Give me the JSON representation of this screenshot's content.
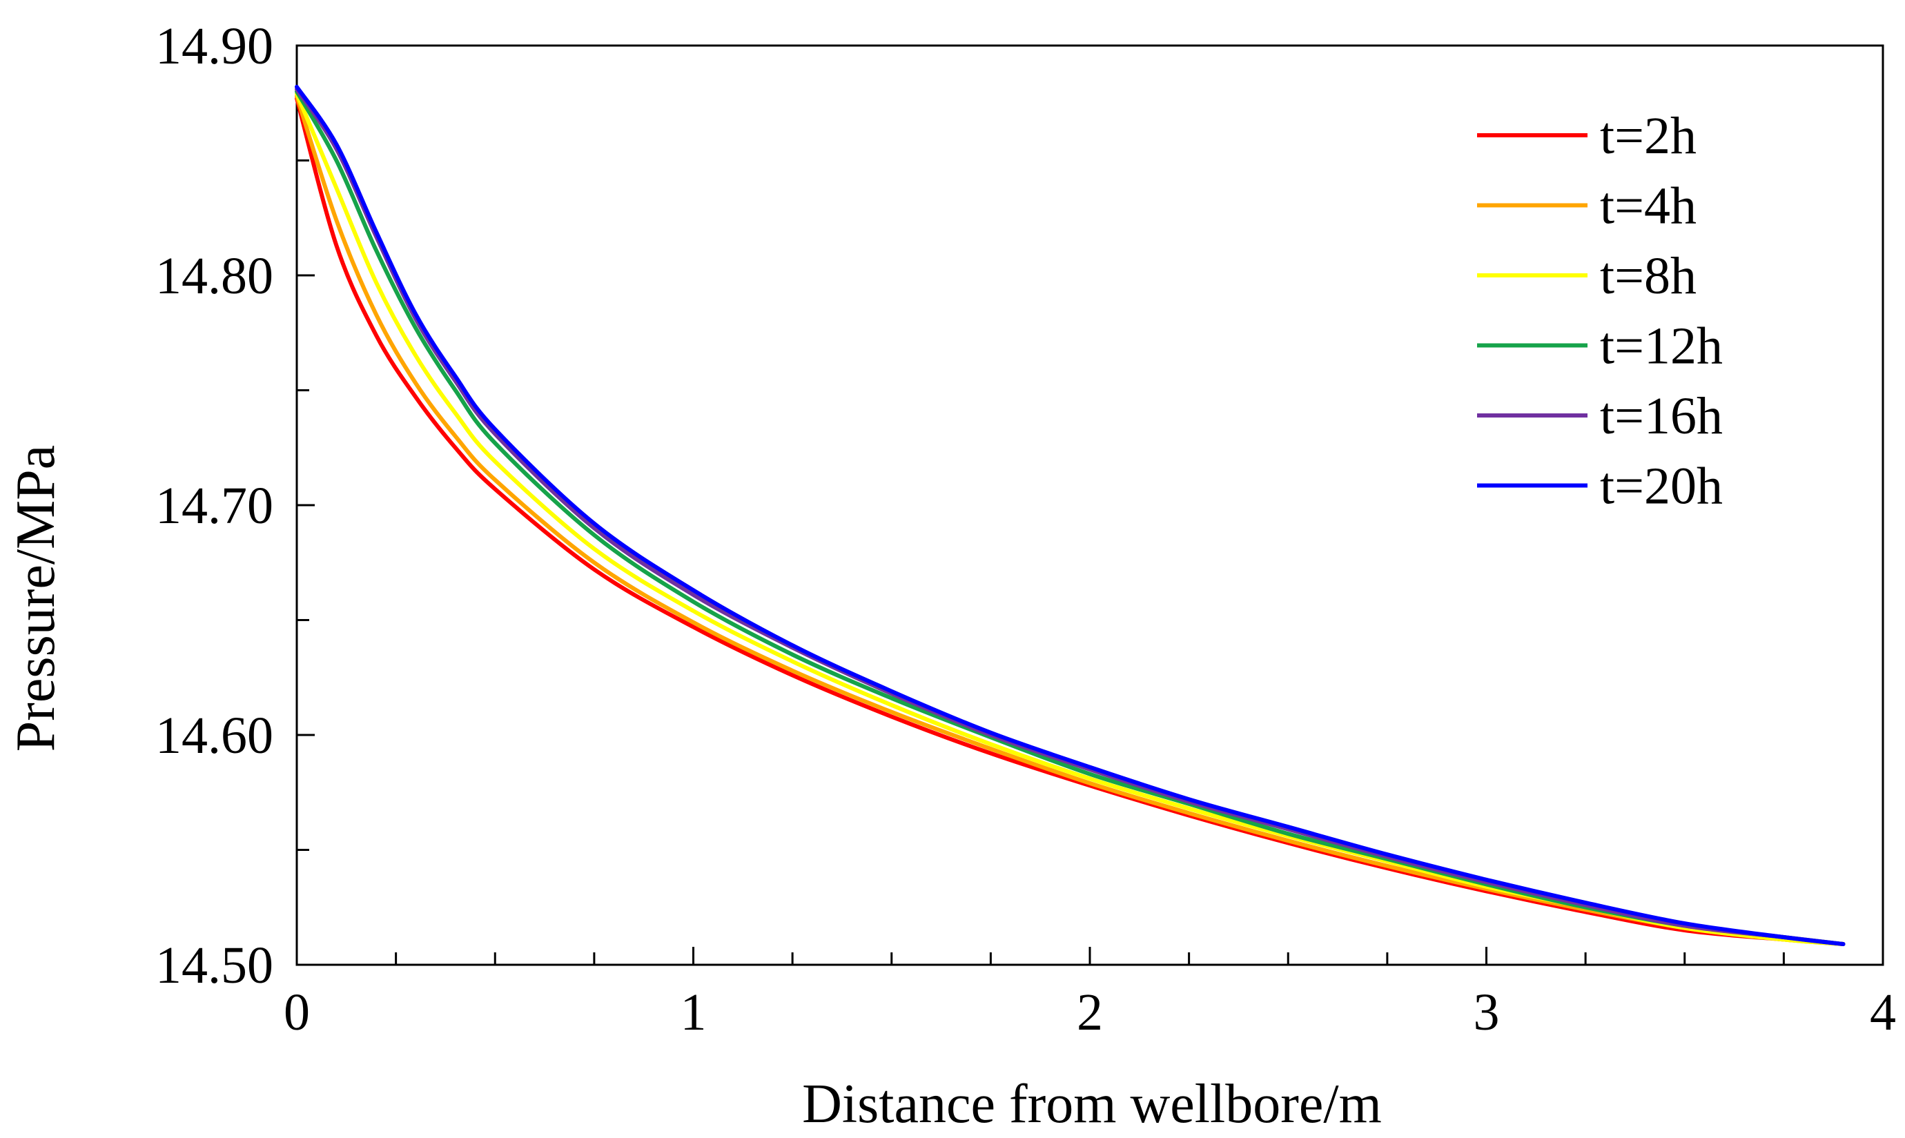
{
  "chart_data": {
    "type": "line",
    "title": "",
    "xlabel": "Distance from wellbore/m",
    "ylabel": "Pressure/MPa",
    "xlim": [
      0,
      4
    ],
    "ylim": [
      14.5,
      14.9
    ],
    "x_ticks": [
      0,
      1,
      2,
      3,
      4
    ],
    "x_tick_labels": [
      "0",
      "1",
      "2",
      "3",
      "4"
    ],
    "y_ticks": [
      14.5,
      14.6,
      14.7,
      14.8,
      14.9
    ],
    "y_tick_labels": [
      "14.50",
      "14.60",
      "14.70",
      "14.80",
      "14.90"
    ],
    "grid": false,
    "legend_position": "top-right",
    "x": [
      0,
      0.1,
      0.2,
      0.3,
      0.4,
      0.5,
      0.75,
      1.0,
      1.25,
      1.5,
      1.75,
      2.0,
      2.25,
      2.5,
      2.75,
      3.0,
      3.25,
      3.5,
      3.75,
      3.9
    ],
    "series": [
      {
        "name": "t=2h",
        "color": "#ff0000",
        "values": [
          14.877,
          14.813,
          14.774,
          14.747,
          14.725,
          14.707,
          14.672,
          14.647,
          14.626,
          14.608,
          14.592,
          14.578,
          14.565,
          14.553,
          14.542,
          14.532,
          14.523,
          14.515,
          14.511,
          14.509
        ]
      },
      {
        "name": "t=4h",
        "color": "#ffa500",
        "values": [
          14.878,
          14.824,
          14.783,
          14.753,
          14.73,
          14.711,
          14.675,
          14.649,
          14.628,
          14.61,
          14.594,
          14.579,
          14.566,
          14.554,
          14.543,
          14.533,
          14.524,
          14.516,
          14.511,
          14.509
        ]
      },
      {
        "name": "t=8h",
        "color": "#ffff00",
        "values": [
          14.879,
          14.838,
          14.797,
          14.765,
          14.74,
          14.719,
          14.681,
          14.654,
          14.632,
          14.613,
          14.596,
          14.581,
          14.568,
          14.556,
          14.545,
          14.534,
          14.525,
          14.516,
          14.511,
          14.509
        ]
      },
      {
        "name": "t=12h",
        "color": "#16a34a",
        "values": [
          14.88,
          14.85,
          14.811,
          14.777,
          14.75,
          14.727,
          14.687,
          14.658,
          14.635,
          14.616,
          14.599,
          14.583,
          14.57,
          14.557,
          14.546,
          14.535,
          14.525,
          14.517,
          14.512,
          14.509
        ]
      },
      {
        "name": "t=16h",
        "color": "#7030a0",
        "values": [
          14.881,
          14.855,
          14.817,
          14.781,
          14.754,
          14.731,
          14.69,
          14.661,
          14.638,
          14.618,
          14.6,
          14.585,
          14.571,
          14.559,
          14.547,
          14.536,
          14.526,
          14.517,
          14.512,
          14.509
        ]
      },
      {
        "name": "t=20h",
        "color": "#0000ff",
        "values": [
          14.882,
          14.857,
          14.819,
          14.783,
          14.756,
          14.733,
          14.692,
          14.663,
          14.639,
          14.619,
          14.601,
          14.586,
          14.572,
          14.56,
          14.548,
          14.537,
          14.527,
          14.518,
          14.512,
          14.509
        ]
      }
    ]
  }
}
